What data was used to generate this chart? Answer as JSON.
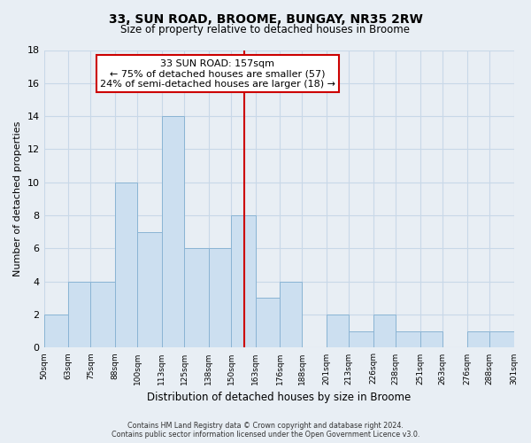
{
  "title": "33, SUN ROAD, BROOME, BUNGAY, NR35 2RW",
  "subtitle": "Size of property relative to detached houses in Broome",
  "xlabel": "Distribution of detached houses by size in Broome",
  "ylabel": "Number of detached properties",
  "bar_edges": [
    50,
    63,
    75,
    88,
    100,
    113,
    125,
    138,
    150,
    163,
    176,
    188,
    201,
    213,
    226,
    238,
    251,
    263,
    276,
    288,
    301
  ],
  "bar_heights": [
    2,
    4,
    4,
    10,
    7,
    14,
    6,
    6,
    8,
    3,
    4,
    0,
    2,
    1,
    2,
    1,
    1,
    0,
    1,
    1
  ],
  "bar_color": "#ccdff0",
  "bar_edge_color": "#8ab4d4",
  "grid_color": "#c8d8e8",
  "property_line_x": 157,
  "property_line_color": "#cc0000",
  "annotation_title": "33 SUN ROAD: 157sqm",
  "annotation_line1": "← 75% of detached houses are smaller (57)",
  "annotation_line2": "24% of semi-detached houses are larger (18) →",
  "annotation_box_facecolor": "#ffffff",
  "annotation_box_edgecolor": "#cc0000",
  "ylim": [
    0,
    18
  ],
  "yticks": [
    0,
    2,
    4,
    6,
    8,
    10,
    12,
    14,
    16,
    18
  ],
  "tick_labels": [
    "50sqm",
    "63sqm",
    "75sqm",
    "88sqm",
    "100sqm",
    "113sqm",
    "125sqm",
    "138sqm",
    "150sqm",
    "163sqm",
    "176sqm",
    "188sqm",
    "201sqm",
    "213sqm",
    "226sqm",
    "238sqm",
    "251sqm",
    "263sqm",
    "276sqm",
    "288sqm",
    "301sqm"
  ],
  "footer_line1": "Contains HM Land Registry data © Crown copyright and database right 2024.",
  "footer_line2": "Contains public sector information licensed under the Open Government Licence v3.0.",
  "fig_facecolor": "#e8eef4",
  "plot_facecolor": "#e8eef4"
}
